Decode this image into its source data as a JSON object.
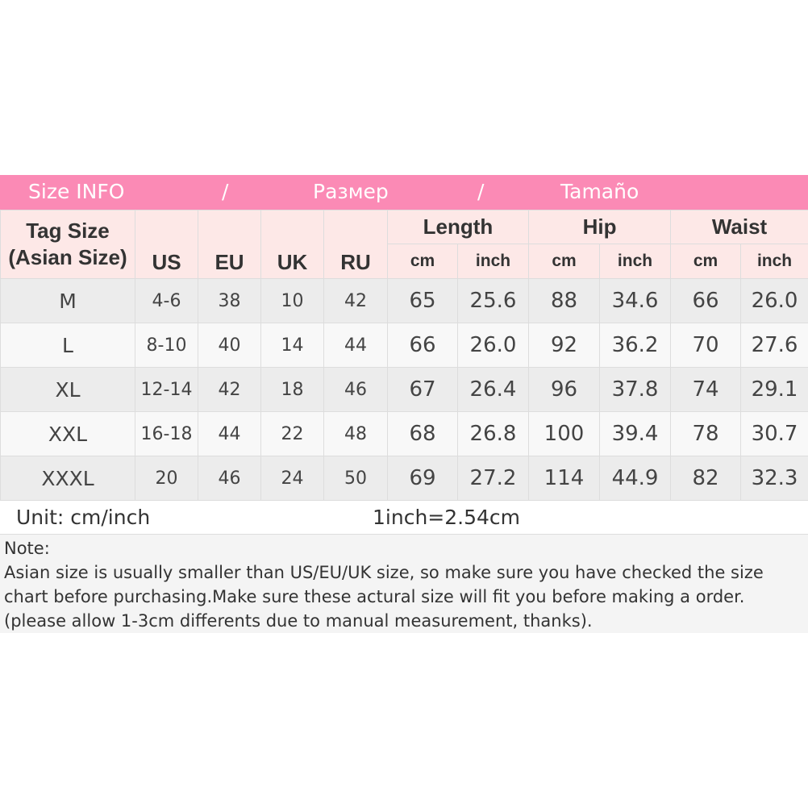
{
  "banner": {
    "title": "Size INFO",
    "sep1": "/",
    "ru": "Размер",
    "sep2": "/",
    "es": "Tamaño",
    "color": "#fb8ab5"
  },
  "header": {
    "tag_size": "Tag Size",
    "asian_size": "(Asian Size)",
    "us": "US",
    "eu": "EU",
    "uk": "UK",
    "ru": "RU",
    "length": "Length",
    "hip": "Hip",
    "waist": "Waist",
    "cm": "cm",
    "inch": "inch"
  },
  "rows": [
    [
      "M",
      "4-6",
      "38",
      "10",
      "42",
      "65",
      "25.6",
      "88",
      "34.6",
      "66",
      "26.0"
    ],
    [
      "L",
      "8-10",
      "40",
      "14",
      "44",
      "66",
      "26.0",
      "92",
      "36.2",
      "70",
      "27.6"
    ],
    [
      "XL",
      "12-14",
      "42",
      "18",
      "46",
      "67",
      "26.4",
      "96",
      "37.8",
      "74",
      "29.1"
    ],
    [
      "XXL",
      "16-18",
      "44",
      "22",
      "48",
      "68",
      "26.8",
      "100",
      "39.4",
      "78",
      "30.7"
    ],
    [
      "XXXL",
      "20",
      "46",
      "24",
      "50",
      "69",
      "27.2",
      "114",
      "44.9",
      "82",
      "32.3"
    ]
  ],
  "unit": {
    "label": "Unit: cm/inch",
    "conversion": "1inch=2.54cm"
  },
  "note": {
    "title": "Note:",
    "text": "Asian size is usually smaller than US/EU/UK size, so make sure you have checked the size chart before purchasing.Make sure these actural size will fit you before making a order.(please allow 1-3cm differents due to manual measurement, thanks)."
  }
}
